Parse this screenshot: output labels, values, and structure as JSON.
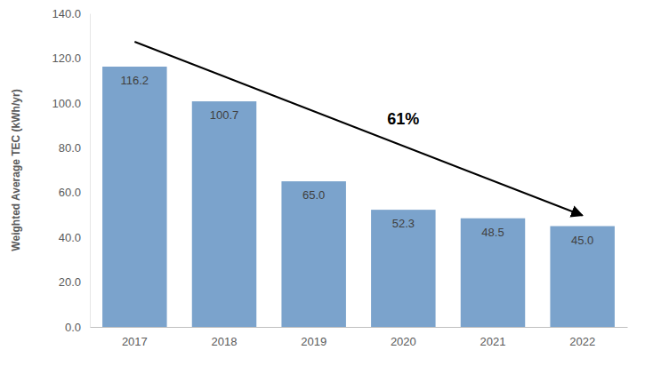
{
  "chart_data": {
    "type": "bar",
    "y_label": "Weighted Average TEC (kWh/yr)",
    "categories": [
      "2017",
      "2018",
      "2019",
      "2020",
      "2021",
      "2022"
    ],
    "values": [
      116.2,
      100.7,
      65.0,
      52.3,
      48.5,
      45.0
    ],
    "value_labels": [
      "116.2",
      "100.7",
      "65.0",
      "52.3",
      "48.5",
      "45.0"
    ],
    "data_labels": true,
    "color": "#7ba3cc",
    "ylim": [
      0,
      140
    ],
    "yticks": [
      {
        "value": 0,
        "label": "0.0"
      },
      {
        "value": 20,
        "label": "20.0"
      },
      {
        "value": 40,
        "label": "40.0"
      },
      {
        "value": 60,
        "label": "60.0"
      },
      {
        "value": 80,
        "label": "80.0"
      },
      {
        "value": 100,
        "label": "100.0"
      },
      {
        "value": 120,
        "label": "120.0"
      },
      {
        "value": 140,
        "label": "140.0"
      }
    ],
    "grid": false,
    "annotation": "61%"
  }
}
